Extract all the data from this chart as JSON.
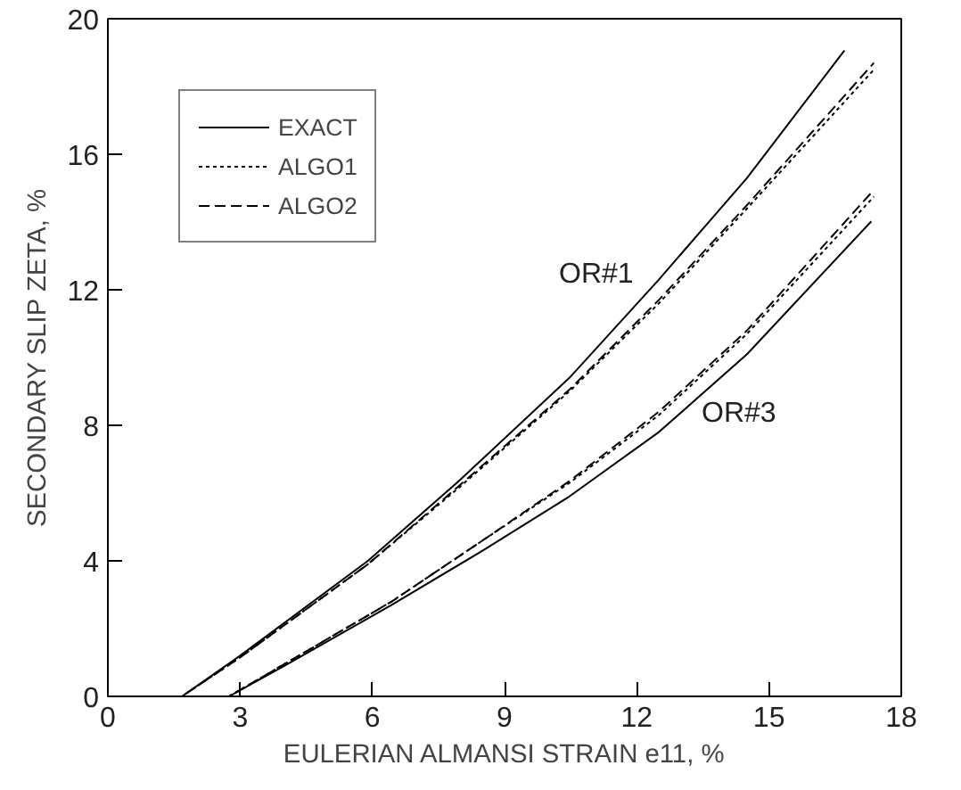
{
  "chart_data": {
    "type": "line",
    "xlabel": "EULERIAN ALMANSI STRAIN e11, %",
    "ylabel": "SECONDARY SLIP ZETA, %",
    "xlim": [
      0,
      18
    ],
    "ylim": [
      0,
      20
    ],
    "xticks": [
      0,
      3,
      6,
      9,
      12,
      15,
      18
    ],
    "yticks": [
      0,
      4,
      8,
      12,
      16,
      20
    ],
    "grid": false,
    "legend": "top left",
    "marker": "none",
    "series": [
      {
        "name": "EXACT",
        "color": "#000000",
        "line_style": "solid",
        "x": [
          0,
          1.68,
          3,
          5.9,
          8,
          10.47,
          12.5,
          14.5,
          16.71
        ],
        "values": [
          0,
          0,
          1.2,
          4.0,
          6.4,
          9.4,
          12.3,
          15.3,
          19.06
        ]
      },
      {
        "name": "ALGO1",
        "color": "#000000",
        "line_style": "dotted",
        "x": [
          0,
          1.68,
          3,
          5.9,
          8,
          10.47,
          12.5,
          14.5,
          17.38
        ],
        "values": [
          0,
          0,
          1.15,
          3.9,
          6.2,
          9.0,
          11.6,
          14.4,
          18.5
        ]
      },
      {
        "name": "ALGO2",
        "color": "#000000",
        "line_style": "dashed",
        "x": [
          0,
          1.68,
          3,
          5.9,
          8,
          10.47,
          12.5,
          14.5,
          17.38
        ],
        "values": [
          0,
          0,
          1.15,
          3.9,
          6.25,
          9.05,
          11.7,
          14.5,
          18.7
        ]
      },
      {
        "color": "#000000",
        "line_style": "solid",
        "x": [
          0,
          2.75,
          4,
          6.44,
          8.5,
          10.47,
          12.5,
          14.5,
          17.32
        ],
        "values": [
          0,
          0,
          0.9,
          2.7,
          4.3,
          5.9,
          7.8,
          10.1,
          14.02
        ]
      },
      {
        "color": "#000000",
        "line_style": "dotted",
        "x": [
          0,
          2.75,
          4,
          6.44,
          8.5,
          10.47,
          12.5,
          14.5,
          17.38
        ],
        "values": [
          0,
          0,
          0.95,
          2.8,
          4.6,
          6.3,
          8.3,
          10.7,
          14.75
        ]
      },
      {
        "color": "#000000",
        "line_style": "dashed",
        "x": [
          0,
          2.75,
          4,
          6.44,
          8.5,
          10.47,
          12.5,
          14.5,
          17.38
        ],
        "values": [
          0,
          0,
          0.95,
          2.8,
          4.6,
          6.35,
          8.4,
          10.8,
          14.95
        ]
      }
    ],
    "annotations": [
      "OR#1",
      "OR#3"
    ]
  }
}
